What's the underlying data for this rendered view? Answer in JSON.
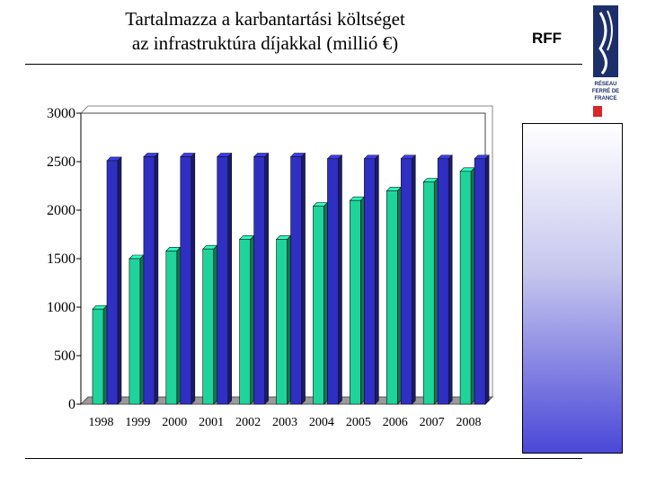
{
  "header": {
    "title_line1": "Tartalmazza a karbantartási költséget",
    "title_line2": "az infrastruktúra díjakkal (millió €)",
    "brand_label": "RFF",
    "logo_text": [
      "RÉSEAU",
      "FERRÉ DE",
      "FRANCE"
    ]
  },
  "colors": {
    "green_series": "#1fd49a",
    "blue_series": "#2f2fc4",
    "panel_gradient_end": "#4a48d8",
    "logo_navy": "#1d2f6b",
    "logo_red": "#d62828"
  },
  "chart_data": {
    "type": "bar",
    "title": "Tartalmazza a karbantartási költséget az infrastruktúra díjakkal (millió €)",
    "xlabel": "",
    "ylabel": "",
    "categories": [
      "1998",
      "1999",
      "2000",
      "2001",
      "2002",
      "2003",
      "2004",
      "2005",
      "2006",
      "2007",
      "2008"
    ],
    "series": [
      {
        "values": [
          980,
          1500,
          1580,
          1600,
          1700,
          1700,
          2040,
          2100,
          2200,
          2290,
          2400
        ],
        "color": "#1fd49a"
      },
      {
        "values": [
          2510,
          2550,
          2550,
          2550,
          2550,
          2550,
          2530,
          2530,
          2530,
          2530,
          2530
        ],
        "color": "#2f2fc4"
      }
    ],
    "yticks": [
      0,
      500,
      1000,
      1500,
      2000,
      2500,
      3000
    ],
    "ylim": [
      0,
      3000
    ],
    "grid": false,
    "legend": "none",
    "style": "3d-bars"
  }
}
